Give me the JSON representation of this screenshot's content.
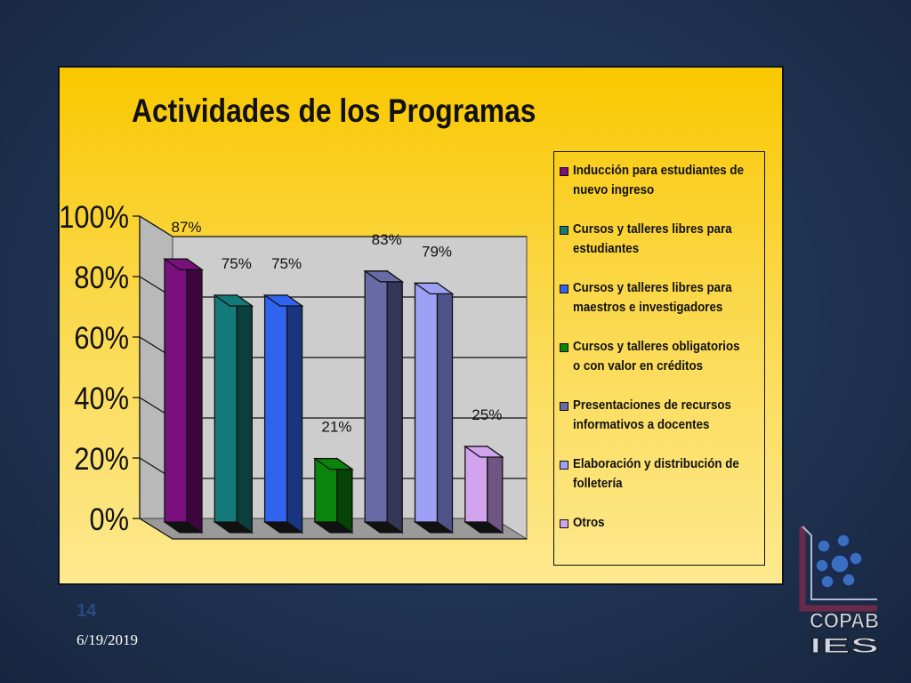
{
  "chart_data": {
    "type": "bar",
    "title": "Actividades de los Programas",
    "y_ticks": [
      "0%",
      "20%",
      "40%",
      "60%",
      "80%",
      "100%"
    ],
    "ylim": [
      0,
      100
    ],
    "grid": true,
    "legend_position": "right",
    "series": [
      {
        "name": "Inducción para estudiantes de nuevo ingreso",
        "value": 87,
        "label": "87%",
        "color": "#7a0f7e",
        "dark": "#3e063f"
      },
      {
        "name": "Cursos y talleres libres para estudiantes",
        "value": 75,
        "label": "75%",
        "color": "#137a79",
        "dark": "#0a3f3e"
      },
      {
        "name": "Cursos y talleres libres para maestros e investigadores",
        "value": 75,
        "label": "75%",
        "color": "#2f63f0",
        "dark": "#1a357f"
      },
      {
        "name": "Cursos y talleres obligatorios o con valor en créditos",
        "value": 21,
        "label": "21%",
        "color": "#0b840b",
        "dark": "#064306"
      },
      {
        "name": "Presentaciones de recursos informativos a docentes",
        "value": 83,
        "label": "83%",
        "color": "#686ba6",
        "dark": "#34365a"
      },
      {
        "name": "Elaboración y distribución de folletería",
        "value": 79,
        "label": "79%",
        "color": "#9ca1f5",
        "dark": "#50538a"
      },
      {
        "name": "Otros",
        "value": 25,
        "label": "25%",
        "color": "#d2a4ee",
        "dark": "#6e5582"
      }
    ]
  },
  "slide": {
    "number": "14",
    "date": "6/19/2019"
  },
  "logo": {
    "text": "COPAB",
    "subtext": "IES"
  }
}
